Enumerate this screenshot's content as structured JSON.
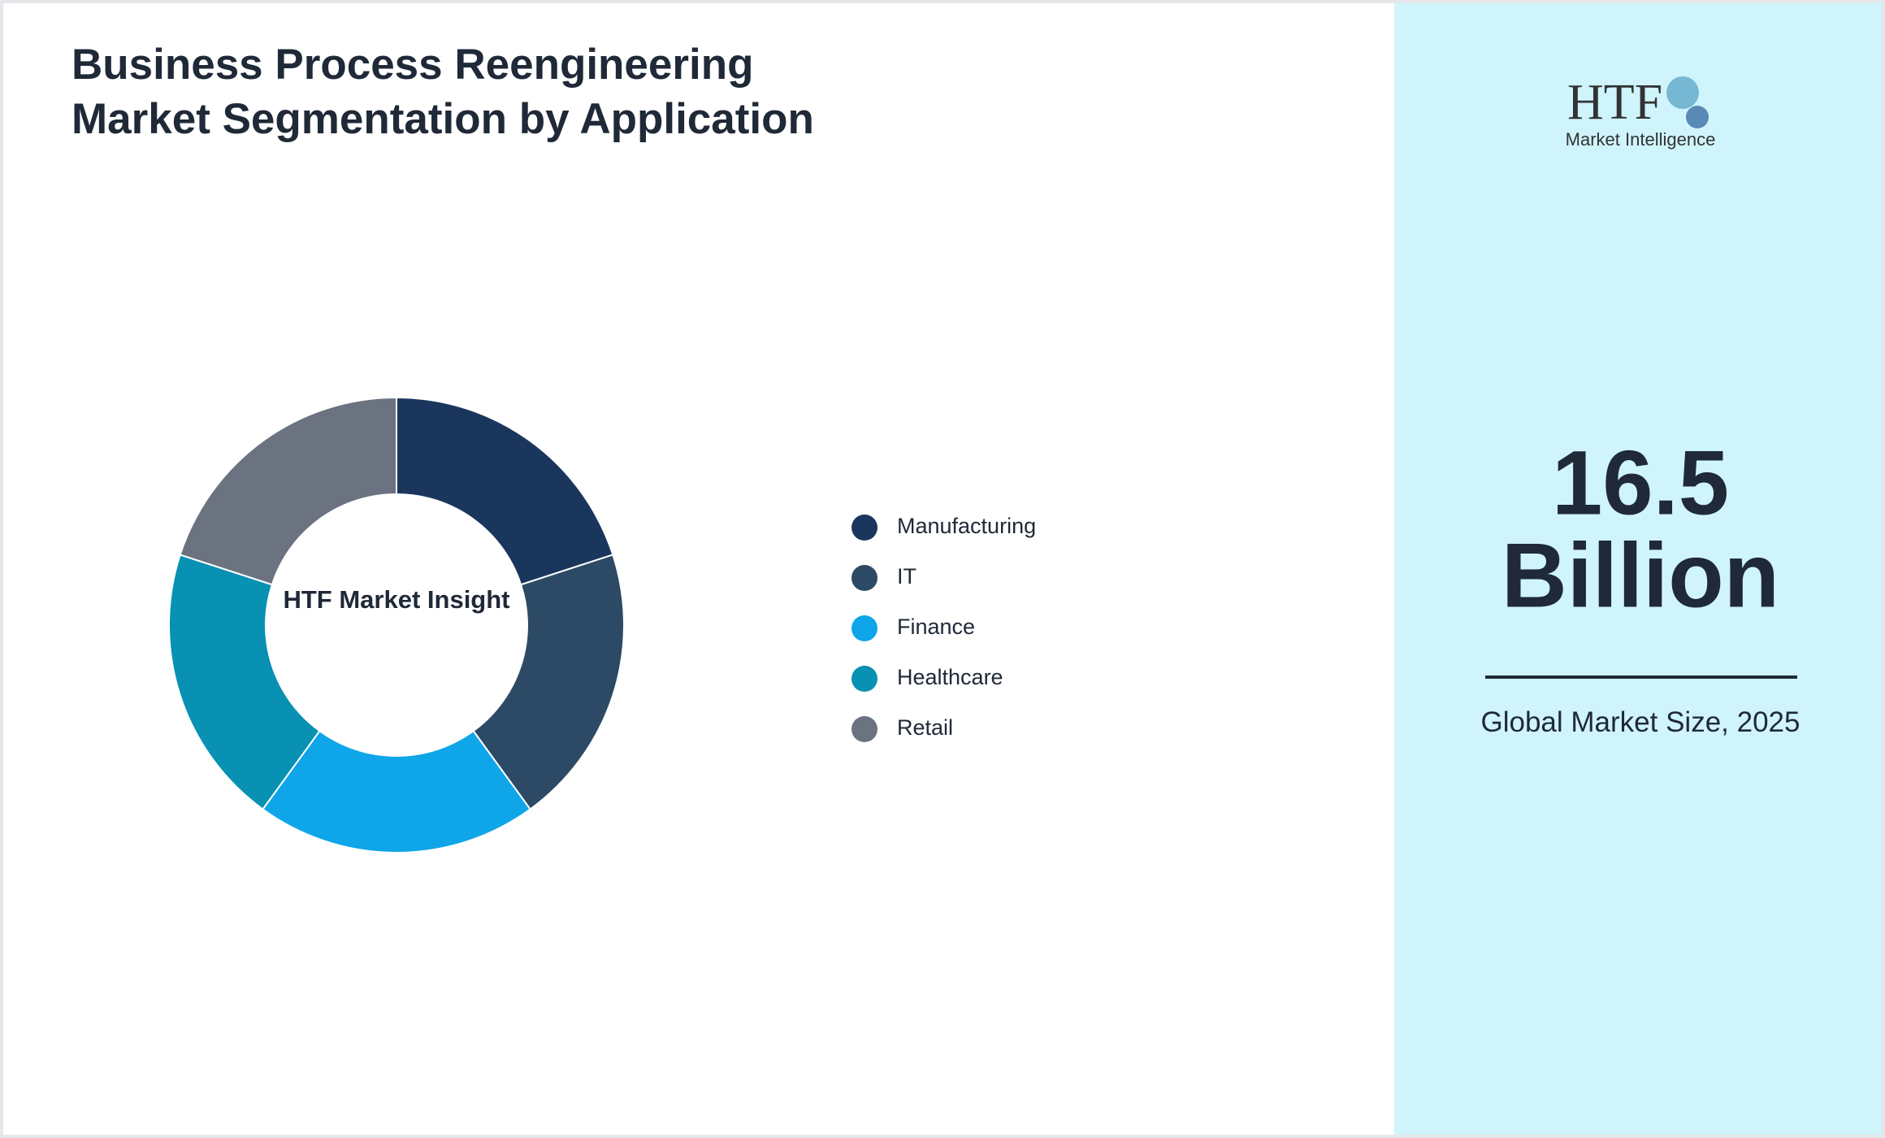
{
  "chart_data": {
    "type": "pie",
    "title": "Business Process Reengineering Market Segmentation by Application",
    "categories": [
      "Manufacturing",
      "IT",
      "Finance",
      "Healthcare",
      "Retail"
    ],
    "values": [
      20,
      20,
      20,
      20,
      20
    ],
    "colors": [
      "#1a365d",
      "#2c4a66",
      "#0ea5e9",
      "#0891b2",
      "#6b7280"
    ],
    "center_label": "HTF Market Insight",
    "legend": "right"
  },
  "sidebar": {
    "logo_mark": "HTF",
    "logo_text": "Market Intelligence",
    "value": "16.5",
    "unit": "Billion",
    "caption": "Global Market Size, 2025"
  }
}
